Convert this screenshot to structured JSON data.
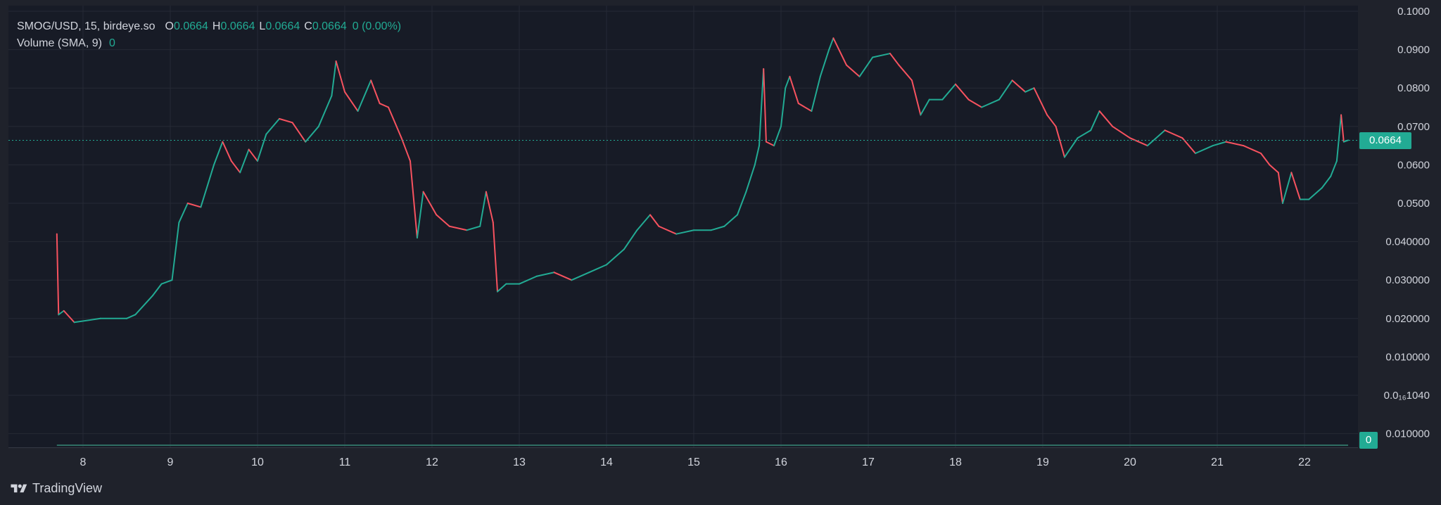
{
  "legend": {
    "symbol": "SMOG/USD, 15, birdeye.so",
    "o_label": "O",
    "o_value": "0.0664",
    "h_label": "H",
    "h_value": "0.0664",
    "l_label": "L",
    "l_value": "0.0664",
    "c_label": "C",
    "c_value": "0.0664",
    "change": "0 (0.00%)",
    "volume_label": "Volume (SMA, 9)",
    "volume_value": "0"
  },
  "price_tag": "0.0664",
  "volume_tag": "0",
  "brand": "TradingView",
  "colors": {
    "background": "#1f222b",
    "pane": "#171b26",
    "grid": "#262a35",
    "up": "#22ab94",
    "down": "#f7525f",
    "text": "#d1d4dc"
  },
  "chart_data": {
    "type": "line",
    "title": "SMOG/USD, 15, birdeye.so",
    "xlabel": "",
    "ylabel": "",
    "ylim": [
      0.0,
      0.1
    ],
    "y_ticks": [
      {
        "label": "0.1000",
        "value": 0.1
      },
      {
        "label": "0.0900",
        "value": 0.09
      },
      {
        "label": "0.0800",
        "value": 0.08
      },
      {
        "label": "0.0700",
        "value": 0.07
      },
      {
        "label": "0.0600",
        "value": 0.06
      },
      {
        "label": "0.0500",
        "value": 0.05
      },
      {
        "label": "0.040000",
        "value": 0.04
      },
      {
        "label": "0.030000",
        "value": 0.03
      },
      {
        "label": "0.020000",
        "value": 0.02
      },
      {
        "label": "0.010000",
        "value": 0.01
      },
      {
        "label": "0.0₁₆1040",
        "value": 0.0
      },
      {
        "label": "0.010000",
        "value": -0.01
      }
    ],
    "x_ticks": [
      "8",
      "9",
      "10",
      "11",
      "12",
      "13",
      "14",
      "15",
      "16",
      "17",
      "18",
      "19",
      "20",
      "21",
      "22"
    ],
    "grid": true,
    "last_price": 0.0664,
    "series": [
      {
        "values": [
          [
            7.7,
            0.042
          ],
          [
            7.72,
            0.021
          ],
          [
            7.78,
            0.022
          ],
          [
            7.9,
            0.019
          ],
          [
            8.2,
            0.02
          ],
          [
            8.5,
            0.02
          ],
          [
            8.6,
            0.021
          ],
          [
            8.8,
            0.026
          ],
          [
            8.9,
            0.029
          ],
          [
            9.02,
            0.03
          ],
          [
            9.1,
            0.045
          ],
          [
            9.2,
            0.05
          ],
          [
            9.35,
            0.049
          ],
          [
            9.5,
            0.06
          ],
          [
            9.6,
            0.066
          ],
          [
            9.7,
            0.061
          ],
          [
            9.8,
            0.058
          ],
          [
            9.9,
            0.064
          ],
          [
            10.0,
            0.061
          ],
          [
            10.1,
            0.068
          ],
          [
            10.25,
            0.072
          ],
          [
            10.4,
            0.071
          ],
          [
            10.55,
            0.066
          ],
          [
            10.7,
            0.07
          ],
          [
            10.85,
            0.078
          ],
          [
            10.9,
            0.087
          ],
          [
            11.0,
            0.079
          ],
          [
            11.15,
            0.074
          ],
          [
            11.3,
            0.082
          ],
          [
            11.4,
            0.076
          ],
          [
            11.5,
            0.075
          ],
          [
            11.65,
            0.067
          ],
          [
            11.75,
            0.061
          ],
          [
            11.83,
            0.041
          ],
          [
            11.9,
            0.053
          ],
          [
            12.05,
            0.047
          ],
          [
            12.2,
            0.044
          ],
          [
            12.4,
            0.043
          ],
          [
            12.55,
            0.044
          ],
          [
            12.62,
            0.053
          ],
          [
            12.7,
            0.045
          ],
          [
            12.75,
            0.027
          ],
          [
            12.85,
            0.029
          ],
          [
            13.0,
            0.029
          ],
          [
            13.2,
            0.031
          ],
          [
            13.4,
            0.032
          ],
          [
            13.6,
            0.03
          ],
          [
            13.8,
            0.032
          ],
          [
            14.0,
            0.034
          ],
          [
            14.2,
            0.038
          ],
          [
            14.35,
            0.043
          ],
          [
            14.5,
            0.047
          ],
          [
            14.6,
            0.044
          ],
          [
            14.8,
            0.042
          ],
          [
            15.0,
            0.043
          ],
          [
            15.2,
            0.043
          ],
          [
            15.35,
            0.044
          ],
          [
            15.5,
            0.047
          ],
          [
            15.6,
            0.053
          ],
          [
            15.7,
            0.06
          ],
          [
            15.75,
            0.065
          ],
          [
            15.8,
            0.085
          ],
          [
            15.83,
            0.066
          ],
          [
            15.92,
            0.065
          ],
          [
            16.0,
            0.07
          ],
          [
            16.05,
            0.08
          ],
          [
            16.1,
            0.083
          ],
          [
            16.2,
            0.076
          ],
          [
            16.35,
            0.074
          ],
          [
            16.45,
            0.083
          ],
          [
            16.55,
            0.09
          ],
          [
            16.6,
            0.093
          ],
          [
            16.75,
            0.086
          ],
          [
            16.9,
            0.083
          ],
          [
            17.05,
            0.088
          ],
          [
            17.25,
            0.089
          ],
          [
            17.35,
            0.086
          ],
          [
            17.5,
            0.082
          ],
          [
            17.6,
            0.073
          ],
          [
            17.7,
            0.077
          ],
          [
            17.85,
            0.077
          ],
          [
            18.0,
            0.081
          ],
          [
            18.15,
            0.077
          ],
          [
            18.3,
            0.075
          ],
          [
            18.5,
            0.077
          ],
          [
            18.65,
            0.082
          ],
          [
            18.8,
            0.079
          ],
          [
            18.9,
            0.08
          ],
          [
            19.05,
            0.073
          ],
          [
            19.15,
            0.07
          ],
          [
            19.25,
            0.062
          ],
          [
            19.4,
            0.067
          ],
          [
            19.55,
            0.069
          ],
          [
            19.65,
            0.074
          ],
          [
            19.8,
            0.07
          ],
          [
            20.0,
            0.067
          ],
          [
            20.2,
            0.065
          ],
          [
            20.4,
            0.069
          ],
          [
            20.6,
            0.067
          ],
          [
            20.75,
            0.063
          ],
          [
            20.95,
            0.065
          ],
          [
            21.1,
            0.066
          ],
          [
            21.3,
            0.065
          ],
          [
            21.5,
            0.063
          ],
          [
            21.6,
            0.06
          ],
          [
            21.7,
            0.058
          ],
          [
            21.75,
            0.05
          ],
          [
            21.85,
            0.058
          ],
          [
            21.95,
            0.051
          ],
          [
            22.05,
            0.051
          ],
          [
            22.2,
            0.054
          ],
          [
            22.3,
            0.057
          ],
          [
            22.37,
            0.061
          ],
          [
            22.42,
            0.073
          ],
          [
            22.45,
            0.066
          ],
          [
            22.5,
            0.0664
          ]
        ]
      }
    ]
  }
}
